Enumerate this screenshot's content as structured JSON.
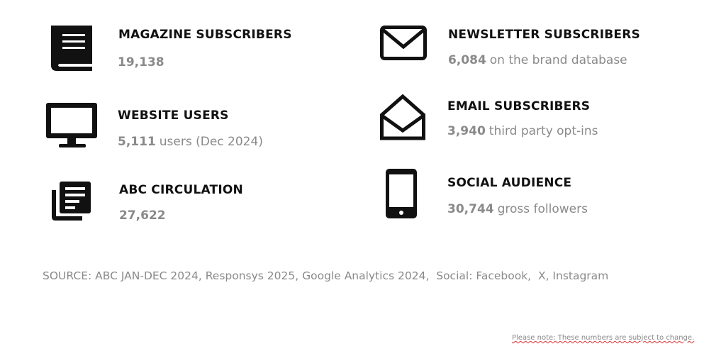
{
  "items": [
    {
      "title": "MAGAZINE SUBSCRIBERS",
      "value": "19,138"
    },
    {
      "title": "WEBSITE USERS",
      "value": "5,111",
      "suffix": "users (Dec 2024)"
    },
    {
      "title": "ABC CIRCULATION",
      "value": "27,622"
    },
    {
      "title": "NEWSLETTER SUBSCRIBERS",
      "value": "6,084",
      "suffix": "on the brand database"
    },
    {
      "title": "EMAIL SUBSCRIBERS",
      "value": "3,940",
      "suffix": "third party opt-ins"
    },
    {
      "title": "SOCIAL AUDIENCE",
      "value": "30,744",
      "suffix": "gross followers"
    }
  ],
  "source": "SOURCE: ABC JAN-DEC 2024, Responsys 2025, Google Analytics 2024,  Social: Facebook,  X, Instagram",
  "note": "Please note: These numbers are subject to change."
}
